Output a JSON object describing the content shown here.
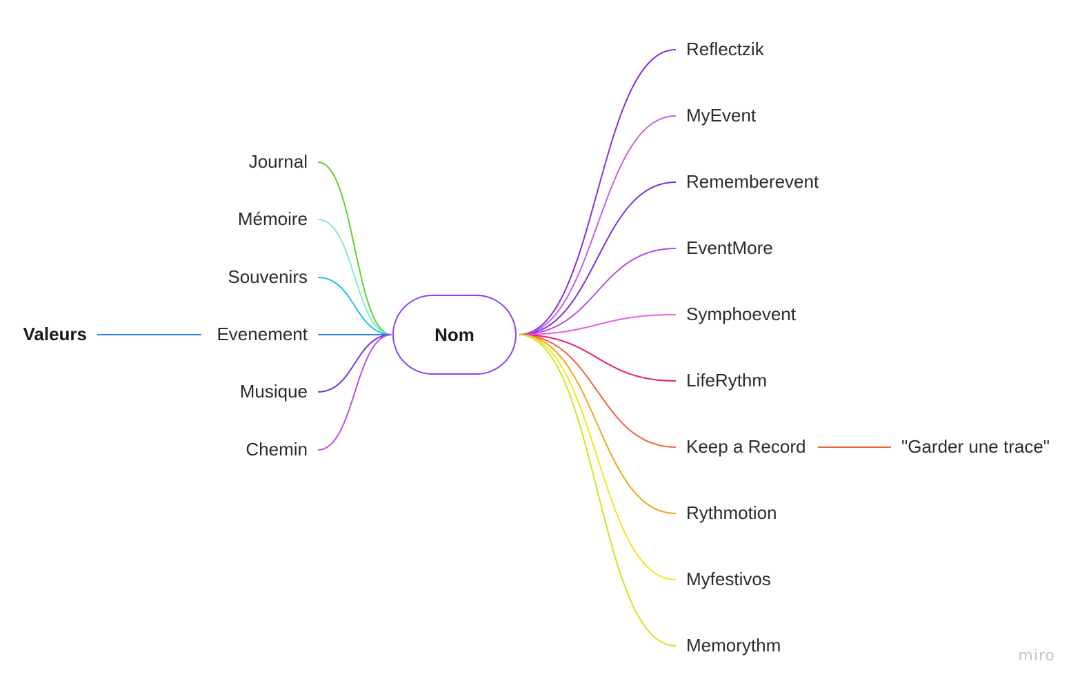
{
  "diagram": {
    "type": "mind-map",
    "center": {
      "label": "Nom",
      "color": "#8a3ffc"
    },
    "left_branches": [
      {
        "label": "Journal",
        "color": "#5fd12a"
      },
      {
        "label": "Mémoire",
        "color": "#7ee8d8"
      },
      {
        "label": "Souvenirs",
        "color": "#18c2e6"
      },
      {
        "label": "Evenement",
        "color": "#2d7fe0"
      },
      {
        "label": "Musique",
        "color": "#7b32d8"
      },
      {
        "label": "Chemin",
        "color": "#b94ee8"
      }
    ],
    "left_sub": {
      "parent": "Evenement",
      "label": "Valeurs",
      "color": "#2d7fe0"
    },
    "right_branches": [
      {
        "label": "Reflectzik",
        "color": "#8a2be2"
      },
      {
        "label": "MyEvent",
        "color": "#c45ee8"
      },
      {
        "label": "Rememberevent",
        "color": "#7a2ee0"
      },
      {
        "label": "EventMore",
        "color": "#b84ae6"
      },
      {
        "label": "Symphoevent",
        "color": "#ef5ae0"
      },
      {
        "label": "LifeRythm",
        "color": "#e81a78"
      },
      {
        "label": "Keep a Record",
        "color": "#f0643c"
      },
      {
        "label": "Rythmotion",
        "color": "#f5a01a"
      },
      {
        "label": "Myfestivos",
        "color": "#f5e41a"
      },
      {
        "label": "Memorythm",
        "color": "#c8e81e"
      }
    ],
    "right_sub": {
      "parent": "Keep a Record",
      "label": "\"Garder une trace\"",
      "color": "#f0643c"
    }
  },
  "watermark": "miro"
}
